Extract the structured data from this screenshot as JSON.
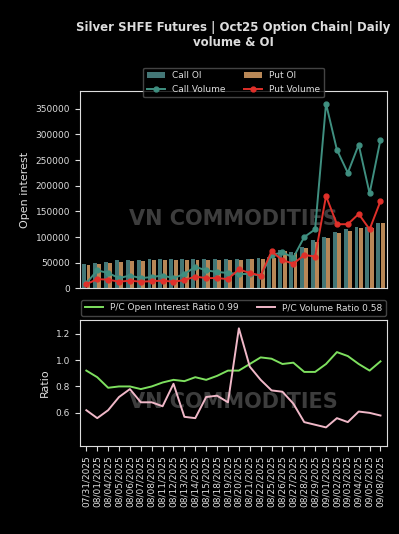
{
  "chart_data": [
    {
      "type": "combo",
      "title": "Silver SHFE Futures | Oct25 Option Chain| Daily volume & OI",
      "y_label": "Open interest",
      "annotations": [
        "VN COMMODITIES"
      ],
      "categories": [
        "07/31/2025",
        "08/01/2025",
        "08/04/2025",
        "08/05/2025",
        "08/06/2025",
        "08/07/2025",
        "08/08/2025",
        "08/11/2025",
        "08/12/2025",
        "08/13/2025",
        "08/14/2025",
        "08/15/2025",
        "08/18/2025",
        "08/19/2025",
        "08/20/2025",
        "08/21/2025",
        "08/22/2025",
        "08/25/2025",
        "08/26/2025",
        "08/27/2025",
        "08/28/2025",
        "08/29/2025",
        "09/01/2025",
        "09/02/2025",
        "09/03/2025",
        "09/04/2025",
        "09/05/2025",
        "09/08/2025"
      ],
      "series": [
        {
          "name": "Call Volume",
          "type": "line",
          "marker": "o",
          "color": "#3f8f80",
          "values": [
            10000,
            35000,
            30000,
            20000,
            25000,
            20000,
            22000,
            25000,
            20000,
            28000,
            42000,
            35000,
            32000,
            30000,
            28000,
            28000,
            25000,
            65000,
            70000,
            60000,
            100000,
            115000,
            360000,
            270000,
            225000,
            280000,
            185000,
            290000
          ]
        },
        {
          "name": "Put Volume",
          "type": "line",
          "marker": "o",
          "color": "#e0302a",
          "values": [
            8000,
            18000,
            17000,
            13000,
            15000,
            13000,
            14000,
            15000,
            13000,
            16000,
            23000,
            20000,
            20000,
            18000,
            37000,
            30000,
            25000,
            72000,
            55000,
            48000,
            65000,
            62000,
            180000,
            125000,
            125000,
            145000,
            115000,
            170000
          ]
        },
        {
          "name": "Call OI",
          "type": "bar",
          "color": "#4f8c8c",
          "values": [
            47000,
            50000,
            52000,
            55000,
            55000,
            56000,
            57000,
            57000,
            57000,
            57000,
            58000,
            58000,
            58000,
            58000,
            58000,
            58000,
            60000,
            62000,
            75000,
            70000,
            80000,
            95000,
            100000,
            110000,
            115000,
            120000,
            120000,
            128000
          ]
        },
        {
          "name": "Put OI",
          "type": "bar",
          "color": "#d9a066",
          "values": [
            45000,
            48000,
            50000,
            52000,
            53000,
            54000,
            55000,
            55000,
            55000,
            55000,
            56000,
            56000,
            56000,
            56000,
            56000,
            57000,
            58000,
            60000,
            72000,
            68000,
            78000,
            90000,
            98000,
            108000,
            112000,
            118000,
            118000,
            127000
          ]
        }
      ],
      "ylim": [
        0,
        385000
      ],
      "yticks": [
        0,
        50000,
        100000,
        150000,
        200000,
        250000,
        300000,
        350000
      ],
      "tick_labels": "y",
      "legend": "upper center",
      "grid": false
    },
    {
      "type": "line",
      "y_label": "Ratio",
      "annotations": [
        "VN COMMODITIES"
      ],
      "categories": [
        "07/31/2025",
        "08/01/2025",
        "08/04/2025",
        "08/05/2025",
        "08/06/2025",
        "08/07/2025",
        "08/08/2025",
        "08/11/2025",
        "08/12/2025",
        "08/13/2025",
        "08/14/2025",
        "08/15/2025",
        "08/18/2025",
        "08/19/2025",
        "08/20/2025",
        "08/21/2025",
        "08/22/2025",
        "08/25/2025",
        "08/26/2025",
        "08/27/2025",
        "08/28/2025",
        "08/29/2025",
        "09/01/2025",
        "09/02/2025",
        "09/03/2025",
        "09/04/2025",
        "09/05/2025",
        "09/08/2025"
      ],
      "series": [
        {
          "name": "P/C Open Interest Ratio 0.99",
          "color": "#7ee05f",
          "values": [
            0.92,
            0.87,
            0.79,
            0.8,
            0.8,
            0.78,
            0.8,
            0.83,
            0.85,
            0.84,
            0.87,
            0.85,
            0.88,
            0.92,
            0.92,
            0.97,
            1.02,
            1.01,
            0.97,
            0.98,
            0.91,
            0.91,
            0.97,
            1.06,
            1.03,
            0.97,
            0.92,
            0.99
          ]
        },
        {
          "name": "P/C Volume Ratio 0.58",
          "color": "#f0b8c8",
          "values": [
            0.62,
            0.56,
            0.62,
            0.72,
            0.78,
            0.68,
            0.68,
            0.65,
            0.82,
            0.57,
            0.56,
            0.72,
            0.73,
            0.68,
            1.24,
            0.95,
            0.85,
            0.77,
            0.76,
            0.67,
            0.53,
            0.51,
            0.49,
            0.56,
            0.53,
            0.61,
            0.6,
            0.58
          ]
        }
      ],
      "ylim": [
        0.35,
        1.3
      ],
      "yticks": [
        0.6,
        0.8,
        1.0,
        1.2
      ],
      "legend": "upper center",
      "grid": false
    }
  ]
}
